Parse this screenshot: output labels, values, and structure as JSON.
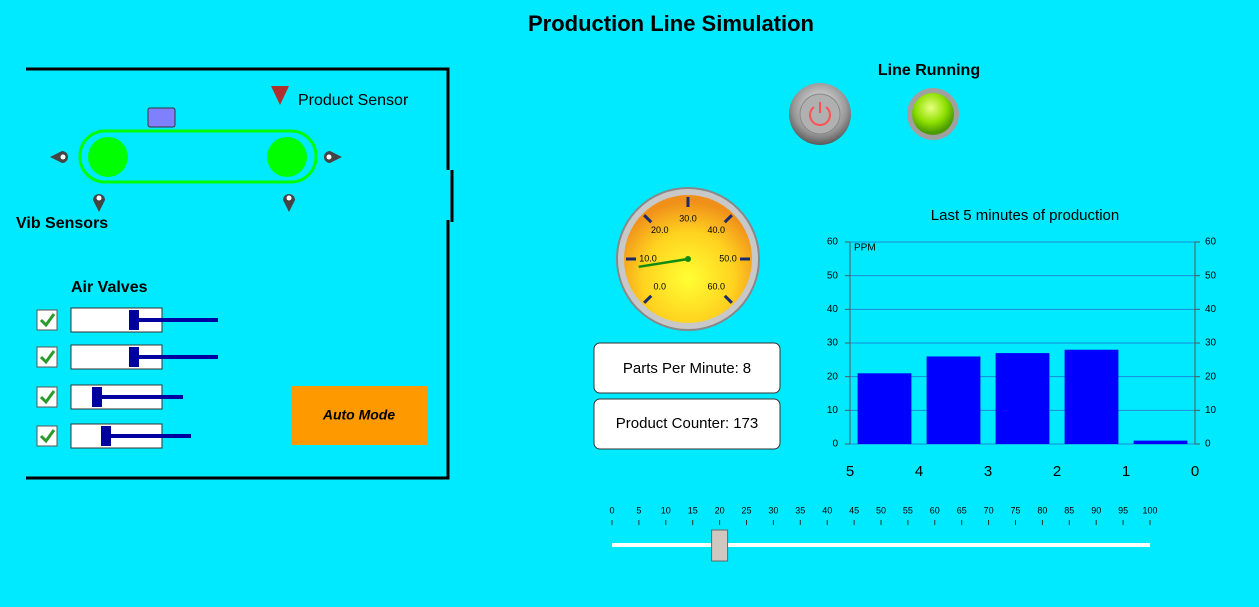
{
  "title": "Production Line Simulation",
  "conveyor": {
    "product_sensor": "Product Sensor",
    "vib_sensors": "Vib Sensors"
  },
  "air_valves": {
    "label": "Air Valves",
    "valves": [
      {
        "checked": true
      },
      {
        "checked": true
      },
      {
        "checked": true
      },
      {
        "checked": true
      }
    ]
  },
  "auto_mode": "Auto Mode",
  "line_running": "Line Running",
  "gauge": {
    "range": [
      0,
      60
    ],
    "value": 8,
    "ticks": [
      {
        "value": 0,
        "label": "0.0"
      },
      {
        "value": 10,
        "label": "10.0"
      },
      {
        "value": 20,
        "label": "20.0"
      },
      {
        "value": 30,
        "label": "30.0"
      },
      {
        "value": 40,
        "label": "40.0"
      },
      {
        "value": 50,
        "label": "50.0"
      },
      {
        "value": 60,
        "label": "60.0"
      }
    ]
  },
  "parts_per_minute": {
    "label": "Parts Per Minute:",
    "value": 8
  },
  "product_counter": {
    "label": "Product Counter:",
    "value": 173
  },
  "chart_data": {
    "type": "bar",
    "title": "Last 5 minutes of production",
    "y_label": "PPM",
    "x": [
      4.5,
      3.5,
      2.5,
      1.5,
      0.5
    ],
    "values": [
      21,
      26,
      27,
      28,
      1
    ],
    "color": "#0000ff",
    "xlim": [
      5,
      0
    ],
    "xticks": [
      5,
      4,
      3,
      2,
      1,
      0
    ],
    "ylim": [
      0,
      60
    ],
    "yticks": [
      0,
      10,
      20,
      30,
      40,
      50,
      60
    ],
    "y2lim": [
      0,
      60
    ],
    "y2ticks": [
      0,
      10,
      20,
      30,
      40,
      50,
      60
    ],
    "grid": true
  },
  "slider": {
    "range": [
      0,
      100
    ],
    "value": 20,
    "ticks": [
      0,
      5,
      10,
      15,
      20,
      25,
      30,
      35,
      40,
      45,
      50,
      55,
      60,
      65,
      70,
      75,
      80,
      85,
      90,
      95,
      100
    ]
  }
}
